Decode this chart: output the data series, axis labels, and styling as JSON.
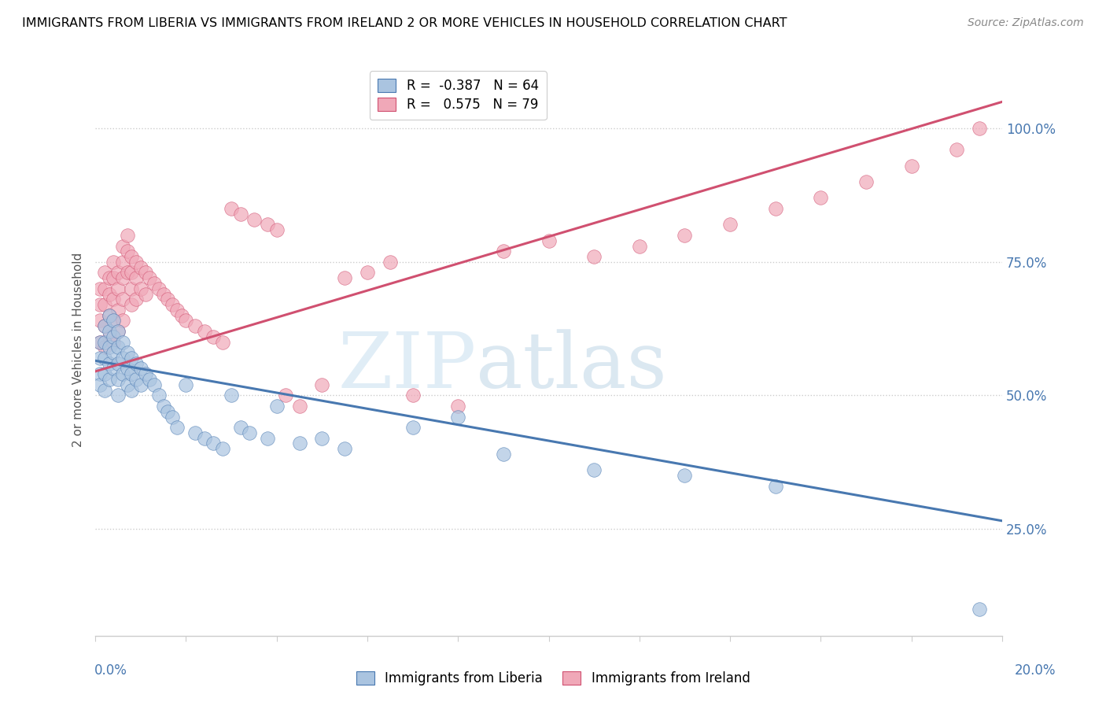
{
  "title": "IMMIGRANTS FROM LIBERIA VS IMMIGRANTS FROM IRELAND 2 OR MORE VEHICLES IN HOUSEHOLD CORRELATION CHART",
  "source": "Source: ZipAtlas.com",
  "ylabel": "2 or more Vehicles in Household",
  "right_yticks": [
    "25.0%",
    "50.0%",
    "75.0%",
    "100.0%"
  ],
  "right_ytick_vals": [
    0.25,
    0.5,
    0.75,
    1.0
  ],
  "legend_liberia": "R =  -0.387   N = 64",
  "legend_ireland": "R =   0.575   N = 79",
  "legend_label_liberia": "Immigrants from Liberia",
  "legend_label_ireland": "Immigrants from Ireland",
  "color_liberia": "#aac4e0",
  "color_ireland": "#f0a8b8",
  "line_color_liberia": "#4878b0",
  "line_color_ireland": "#d05070",
  "watermark_zip": "ZIP",
  "watermark_atlas": "atlas",
  "xlim": [
    0.0,
    0.2
  ],
  "ylim": [
    0.05,
    1.12
  ],
  "liberia_x": [
    0.001,
    0.001,
    0.001,
    0.001,
    0.002,
    0.002,
    0.002,
    0.002,
    0.002,
    0.003,
    0.003,
    0.003,
    0.003,
    0.003,
    0.004,
    0.004,
    0.004,
    0.004,
    0.005,
    0.005,
    0.005,
    0.005,
    0.005,
    0.006,
    0.006,
    0.006,
    0.007,
    0.007,
    0.007,
    0.008,
    0.008,
    0.008,
    0.009,
    0.009,
    0.01,
    0.01,
    0.011,
    0.012,
    0.013,
    0.014,
    0.015,
    0.016,
    0.017,
    0.018,
    0.02,
    0.022,
    0.024,
    0.026,
    0.028,
    0.03,
    0.032,
    0.034,
    0.038,
    0.04,
    0.045,
    0.05,
    0.055,
    0.07,
    0.08,
    0.09,
    0.11,
    0.13,
    0.15,
    0.195
  ],
  "liberia_y": [
    0.6,
    0.57,
    0.54,
    0.52,
    0.63,
    0.6,
    0.57,
    0.54,
    0.51,
    0.65,
    0.62,
    0.59,
    0.56,
    0.53,
    0.64,
    0.61,
    0.58,
    0.55,
    0.62,
    0.59,
    0.56,
    0.53,
    0.5,
    0.6,
    0.57,
    0.54,
    0.58,
    0.55,
    0.52,
    0.57,
    0.54,
    0.51,
    0.56,
    0.53,
    0.55,
    0.52,
    0.54,
    0.53,
    0.52,
    0.5,
    0.48,
    0.47,
    0.46,
    0.44,
    0.52,
    0.43,
    0.42,
    0.41,
    0.4,
    0.5,
    0.44,
    0.43,
    0.42,
    0.48,
    0.41,
    0.42,
    0.4,
    0.44,
    0.46,
    0.39,
    0.36,
    0.35,
    0.33,
    0.1
  ],
  "ireland_x": [
    0.001,
    0.001,
    0.001,
    0.001,
    0.002,
    0.002,
    0.002,
    0.002,
    0.002,
    0.003,
    0.003,
    0.003,
    0.003,
    0.004,
    0.004,
    0.004,
    0.004,
    0.004,
    0.005,
    0.005,
    0.005,
    0.005,
    0.006,
    0.006,
    0.006,
    0.006,
    0.006,
    0.007,
    0.007,
    0.007,
    0.008,
    0.008,
    0.008,
    0.008,
    0.009,
    0.009,
    0.009,
    0.01,
    0.01,
    0.011,
    0.011,
    0.012,
    0.013,
    0.014,
    0.015,
    0.016,
    0.017,
    0.018,
    0.019,
    0.02,
    0.022,
    0.024,
    0.026,
    0.028,
    0.03,
    0.032,
    0.035,
    0.038,
    0.04,
    0.042,
    0.045,
    0.05,
    0.055,
    0.06,
    0.065,
    0.07,
    0.08,
    0.09,
    0.1,
    0.11,
    0.12,
    0.13,
    0.14,
    0.15,
    0.16,
    0.17,
    0.18,
    0.19,
    0.195
  ],
  "ireland_y": [
    0.7,
    0.67,
    0.64,
    0.6,
    0.73,
    0.7,
    0.67,
    0.63,
    0.59,
    0.72,
    0.69,
    0.65,
    0.61,
    0.75,
    0.72,
    0.68,
    0.64,
    0.6,
    0.73,
    0.7,
    0.66,
    0.62,
    0.78,
    0.75,
    0.72,
    0.68,
    0.64,
    0.8,
    0.77,
    0.73,
    0.76,
    0.73,
    0.7,
    0.67,
    0.75,
    0.72,
    0.68,
    0.74,
    0.7,
    0.73,
    0.69,
    0.72,
    0.71,
    0.7,
    0.69,
    0.68,
    0.67,
    0.66,
    0.65,
    0.64,
    0.63,
    0.62,
    0.61,
    0.6,
    0.85,
    0.84,
    0.83,
    0.82,
    0.81,
    0.5,
    0.48,
    0.52,
    0.72,
    0.73,
    0.75,
    0.5,
    0.48,
    0.77,
    0.79,
    0.76,
    0.78,
    0.8,
    0.82,
    0.85,
    0.87,
    0.9,
    0.93,
    0.96,
    1.0
  ],
  "line_liberia_x0": 0.0,
  "line_liberia_y0": 0.565,
  "line_liberia_x1": 0.2,
  "line_liberia_y1": 0.265,
  "line_ireland_x0": 0.0,
  "line_ireland_y0": 0.545,
  "line_ireland_x1": 0.2,
  "line_ireland_y1": 1.05
}
